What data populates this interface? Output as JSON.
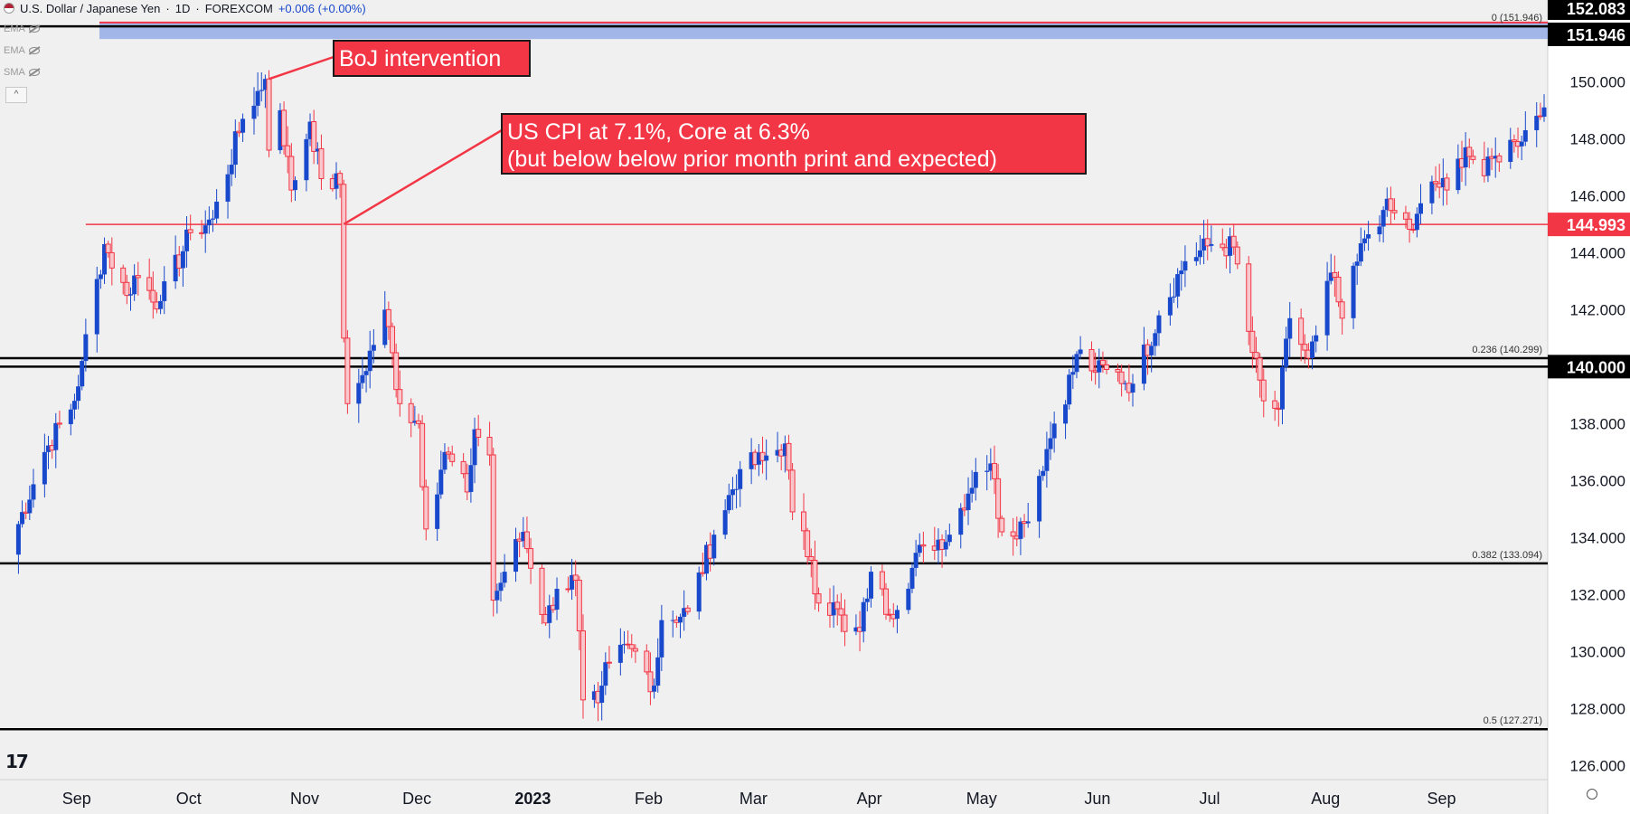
{
  "header": {
    "symbol": "U.S. Dollar / Japanese Yen",
    "timeframe": "1D",
    "source": "FOREXCOM",
    "separator": "·",
    "change": "+0.006 (+0.00%)"
  },
  "indicators": [
    {
      "label": "EMA",
      "icon": "eye-off-icon"
    },
    {
      "label": "EMA",
      "icon": "eye-off-icon"
    },
    {
      "label": "SMA",
      "icon": "eye-off-icon"
    }
  ],
  "collapse_glyph": "^",
  "logo_text": "17",
  "chart_data": {
    "type": "candlestick",
    "ylim": [
      125.5,
      152.3
    ],
    "y_ticks": [
      "150.000",
      "148.000",
      "146.000",
      "144.000",
      "142.000",
      "140.000",
      "138.000",
      "136.000",
      "134.000",
      "132.000",
      "130.000",
      "128.000",
      "126.000"
    ],
    "x_labels": [
      {
        "label": "Sep",
        "date": "2022-09-01"
      },
      {
        "label": "Oct",
        "date": "2022-10-01"
      },
      {
        "label": "Nov",
        "date": "2022-11-01"
      },
      {
        "label": "Dec",
        "date": "2022-12-01"
      },
      {
        "label": "2023",
        "date": "2023-01-01"
      },
      {
        "label": "Feb",
        "date": "2023-02-01"
      },
      {
        "label": "Mar",
        "date": "2023-03-01"
      },
      {
        "label": "Apr",
        "date": "2023-04-01"
      },
      {
        "label": "May",
        "date": "2023-05-01"
      },
      {
        "label": "Jun",
        "date": "2023-06-01"
      },
      {
        "label": "Jul",
        "date": "2023-07-01"
      },
      {
        "label": "Aug",
        "date": "2023-08-01"
      },
      {
        "label": "Sep",
        "date": "2023-09-01"
      }
    ],
    "date_range": [
      "2022-08-12",
      "2023-09-27"
    ],
    "price_tags": [
      {
        "label": "152.083",
        "value": 152.083,
        "color": "#000000"
      },
      {
        "label": "151.946",
        "value": 151.946,
        "color": "#000000"
      },
      {
        "label": "144.993",
        "value": 144.993,
        "color": "#f23645"
      },
      {
        "label": "140.000",
        "value": 140.0,
        "color": "#000000"
      }
    ],
    "horizontal_lines": [
      {
        "value": 151.946,
        "color": "#000000"
      },
      {
        "value": 140.299,
        "color": "#000000"
      },
      {
        "value": 140.0,
        "color": "#000000"
      },
      {
        "value": 133.094,
        "color": "#000000"
      },
      {
        "value": 127.271,
        "color": "#000000"
      },
      {
        "value": 144.993,
        "color": "#f23645",
        "start_date": "2022-09-02"
      }
    ],
    "fib_labels": [
      {
        "label": "0 (151.946)",
        "value": 151.946
      },
      {
        "label": "0.236 (140.299)",
        "value": 140.299
      },
      {
        "label": "0.382 (133.094)",
        "value": 133.094
      },
      {
        "label": "0.5 (127.271)",
        "value": 127.271
      }
    ],
    "band": {
      "from": 151.946,
      "to": 152.083,
      "color": "#8fa8e6"
    },
    "annotations": [
      {
        "lines": [
          "BoJ intervention"
        ],
        "anchor_date": "2022-10-21",
        "anchor_value": 150.1,
        "font_size": 25
      },
      {
        "lines": [
          "US CPI at 7.1%, Core at 6.3%",
          "(but below below prior month print and expected)"
        ],
        "anchor_date": "2022-11-10",
        "anchor_value": 145.0,
        "font_size": 25
      }
    ],
    "colors": {
      "up": "#1848cc",
      "down": "#f23645",
      "down_body": "#f8c6cb",
      "grid": "#f0f0f0"
    },
    "anchors": [
      [
        "2022-08-12",
        133.4
      ],
      [
        "2022-08-22",
        137.0
      ],
      [
        "2022-08-30",
        138.8
      ],
      [
        "2022-09-01",
        140.2
      ],
      [
        "2022-09-07",
        144.3
      ],
      [
        "2022-09-13",
        142.5
      ],
      [
        "2022-09-15",
        143.2
      ],
      [
        "2022-09-22",
        142.3
      ],
      [
        "2022-09-30",
        144.7
      ],
      [
        "2022-10-06",
        145.2
      ],
      [
        "2022-10-14",
        148.7
      ],
      [
        "2022-10-20",
        150.1
      ],
      [
        "2022-10-21",
        147.6
      ],
      [
        "2022-10-24",
        149.0
      ],
      [
        "2022-10-27",
        146.2
      ],
      [
        "2022-11-01",
        148.6
      ],
      [
        "2022-11-04",
        146.6
      ],
      [
        "2022-11-09",
        146.4
      ],
      [
        "2022-11-10",
        141.0
      ],
      [
        "2022-11-11",
        138.7
      ],
      [
        "2022-11-15",
        139.7
      ],
      [
        "2022-11-21",
        142.0
      ],
      [
        "2022-11-25",
        138.7
      ],
      [
        "2022-11-30",
        138.0
      ],
      [
        "2022-12-02",
        134.3
      ],
      [
        "2022-12-07",
        137.0
      ],
      [
        "2022-12-13",
        135.6
      ],
      [
        "2022-12-15",
        137.8
      ],
      [
        "2022-12-19",
        136.9
      ],
      [
        "2022-12-20",
        131.8
      ],
      [
        "2022-12-23",
        132.8
      ],
      [
        "2022-12-28",
        134.2
      ],
      [
        "2023-01-03",
        131.0
      ],
      [
        "2023-01-06",
        132.2
      ],
      [
        "2023-01-11",
        132.5
      ],
      [
        "2023-01-13",
        128.3
      ],
      [
        "2023-01-16",
        128.6
      ],
      [
        "2023-01-17",
        128.2
      ],
      [
        "2023-01-18",
        128.8
      ],
      [
        "2023-01-20",
        129.6
      ],
      [
        "2023-01-26",
        130.1
      ],
      [
        "2023-02-01",
        128.8
      ],
      [
        "2023-02-03",
        131.1
      ],
      [
        "2023-02-10",
        131.4
      ],
      [
        "2023-02-17",
        134.1
      ],
      [
        "2023-02-24",
        136.4
      ],
      [
        "2023-03-02",
        136.7
      ],
      [
        "2023-03-08",
        137.3
      ],
      [
        "2023-03-10",
        134.9
      ],
      [
        "2023-03-15",
        133.2
      ],
      [
        "2023-03-17",
        131.7
      ],
      [
        "2023-03-22",
        131.5
      ],
      [
        "2023-03-24",
        130.7
      ],
      [
        "2023-03-28",
        130.7
      ],
      [
        "2023-03-31",
        132.8
      ],
      [
        "2023-04-05",
        131.3
      ],
      [
        "2023-04-14",
        133.7
      ],
      [
        "2023-04-21",
        134.1
      ],
      [
        "2023-04-28",
        136.3
      ],
      [
        "2023-05-02",
        136.6
      ],
      [
        "2023-05-05",
        134.2
      ],
      [
        "2023-05-11",
        134.5
      ],
      [
        "2023-05-19",
        138.0
      ],
      [
        "2023-05-26",
        140.6
      ],
      [
        "2023-05-30",
        139.8
      ],
      [
        "2023-06-02",
        139.9
      ],
      [
        "2023-06-09",
        139.4
      ],
      [
        "2023-06-16",
        141.8
      ],
      [
        "2023-06-23",
        143.7
      ],
      [
        "2023-06-30",
        144.3
      ],
      [
        "2023-07-06",
        144.2
      ],
      [
        "2023-07-11",
        140.5
      ],
      [
        "2023-07-14",
        138.8
      ],
      [
        "2023-07-18",
        138.5
      ],
      [
        "2023-07-21",
        141.7
      ],
      [
        "2023-07-26",
        140.3
      ],
      [
        "2023-07-28",
        141.1
      ],
      [
        "2023-08-01",
        143.3
      ],
      [
        "2023-08-04",
        141.7
      ],
      [
        "2023-08-10",
        144.5
      ],
      [
        "2023-08-15",
        145.5
      ],
      [
        "2023-08-18",
        145.4
      ],
      [
        "2023-08-23",
        144.8
      ],
      [
        "2023-08-28",
        146.5
      ],
      [
        "2023-09-01",
        146.2
      ],
      [
        "2023-09-06",
        147.7
      ],
      [
        "2023-09-11",
        146.7
      ],
      [
        "2023-09-14",
        147.4
      ],
      [
        "2023-09-19",
        147.9
      ],
      [
        "2023-09-22",
        148.3
      ],
      [
        "2023-09-27",
        149.1
      ]
    ]
  }
}
